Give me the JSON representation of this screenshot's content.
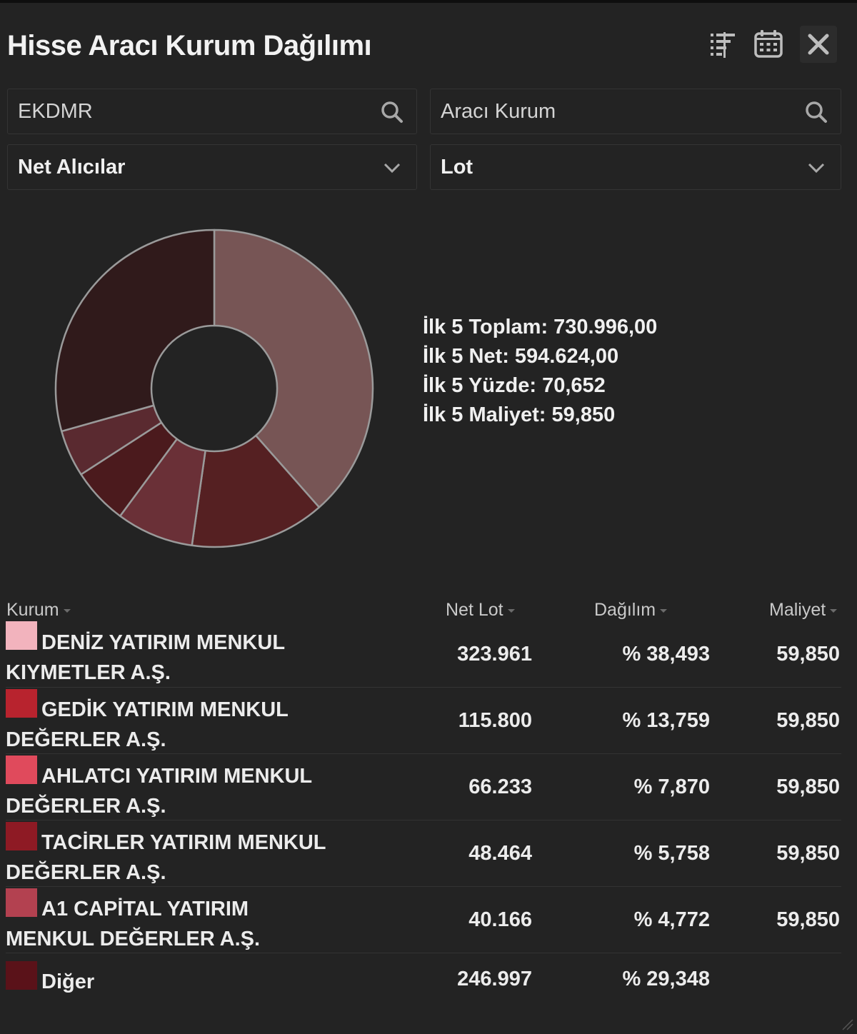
{
  "window": {
    "title": "Hisse Aracı Kurum Dağılımı",
    "icons": [
      "filter-sort-icon",
      "calendar-icon",
      "close-icon"
    ]
  },
  "filters": {
    "stock_value": "EKDMR",
    "broker_placeholder": "Aracı Kurum",
    "side_selected": "Net Alıcılar",
    "unit_selected": "Lot"
  },
  "summary": {
    "toplam": "İlk 5 Toplam: 730.996,00",
    "net": "İlk 5 Net: 594.624,00",
    "yuzde": "İlk 5 Yüzde: 70,652",
    "maliyet": "İlk 5 Maliyet: 59,850"
  },
  "chart_data": {
    "type": "pie",
    "categories": [
      "DENİZ YATIRIM MENKUL KIYMETLER A.Ş.",
      "GEDİK YATIRIM MENKUL DEĞERLER A.Ş.",
      "AHLATCI YATIRIM MENKUL DEĞERLER A.Ş.",
      "TACİRLER YATIRIM MENKUL DEĞERLER A.Ş.",
      "A1 CAPİTAL YATIRIM MENKUL DEĞERLER A.Ş.",
      "Diğer"
    ],
    "values": [
      38.493,
      13.759,
      7.87,
      5.758,
      4.772,
      29.348
    ],
    "colors": [
      "#775555",
      "#552022",
      "#6a3037",
      "#4b1a1d",
      "#5a2a30",
      "#301a1b"
    ],
    "donut": true
  },
  "table": {
    "headers": {
      "kurum": "Kurum",
      "netlot": "Net Lot",
      "dagilim": "Dağılım",
      "maliyet": "Maliyet"
    },
    "rows": [
      {
        "name": "DENİZ YATIRIM MENKUL KIYMETLER A.Ş.",
        "color": "#f2b3bd",
        "netlot": "323.961",
        "dagilim": "% 38,493",
        "maliyet": "59,850"
      },
      {
        "name": "GEDİK YATIRIM MENKUL DEĞERLER A.Ş.",
        "color": "#b8232e",
        "netlot": "115.800",
        "dagilim": "% 13,759",
        "maliyet": "59,850"
      },
      {
        "name": "AHLATCI YATIRIM MENKUL DEĞERLER A.Ş.",
        "color": "#e04a5c",
        "netlot": "66.233",
        "dagilim": "% 7,870",
        "maliyet": "59,850"
      },
      {
        "name": "TACİRLER YATIRIM MENKUL DEĞERLER A.Ş.",
        "color": "#8e1a24",
        "netlot": "48.464",
        "dagilim": "% 5,758",
        "maliyet": "59,850"
      },
      {
        "name": "A1 CAPİTAL YATIRIM MENKUL DEĞERLER A.Ş.",
        "color": "#b34150",
        "netlot": "40.166",
        "dagilim": "% 4,772",
        "maliyet": "59,850"
      },
      {
        "name": "Diğer",
        "color": "#5a1219",
        "netlot": "246.997",
        "dagilim": "% 29,348",
        "maliyet": ""
      }
    ]
  }
}
